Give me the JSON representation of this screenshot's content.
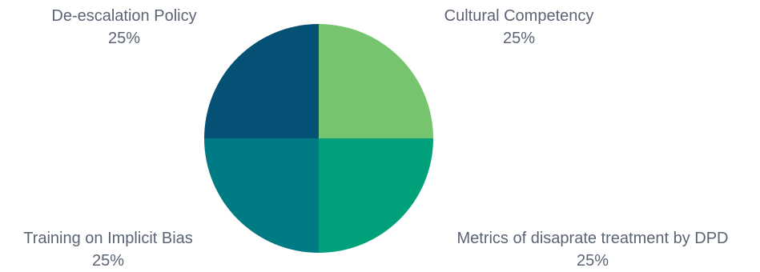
{
  "chart_data": {
    "type": "pie",
    "slices": [
      {
        "label": "Cultural Competency",
        "value": 25,
        "percent_label": "25%",
        "color": "#77c46f"
      },
      {
        "label": "Metrics of disaprate treatment by DPD",
        "value": 25,
        "percent_label": "25%",
        "color": "#00a07a"
      },
      {
        "label": "Training on Implicit Bias",
        "value": 25,
        "percent_label": "25%",
        "color": "#007a83"
      },
      {
        "label": "De-escalation Policy",
        "value": 25,
        "percent_label": "25%",
        "color": "#045175"
      }
    ],
    "legend": "none",
    "start_angle": "12 o'clock, clockwise"
  }
}
